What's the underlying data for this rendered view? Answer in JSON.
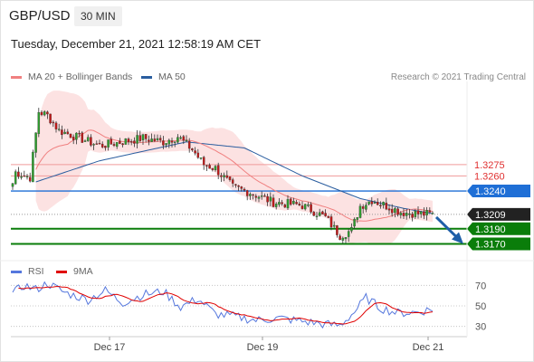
{
  "header": {
    "pair": "GBP/USD",
    "timeframe": "30 MIN",
    "datetime": "Tuesday, December 21, 2021 12:58:19 AM CET"
  },
  "legend": {
    "ma20": "MA 20 + Bollinger Bands",
    "ma50": "MA 50",
    "ma20_color": "#f08080",
    "ma50_color": "#2a5d9f",
    "credit": "Research © 2021 Trading Central"
  },
  "rsi_legend": {
    "rsi": "RSI",
    "ma9": "9MA",
    "rsi_color": "#5577dd",
    "ma9_color": "#e00000"
  },
  "chart_data": [
    {
      "type": "candlestick",
      "title": "GBP/USD 30 MIN",
      "x_ticks": [
        "Dec 17",
        "Dec 19",
        "Dec 21"
      ],
      "bars": 146,
      "ylim": [
        1.3155,
        1.3385
      ],
      "levels": [
        {
          "value": "1.3275",
          "role": "resistance",
          "color": "#e05050"
        },
        {
          "value": "1.3260",
          "role": "resistance",
          "color": "#e05050"
        },
        {
          "value": "1.3240",
          "role": "resistance",
          "color": "#1f6fd6"
        },
        {
          "value": "1.3209",
          "role": "last price",
          "color": "#222222"
        },
        {
          "value": "1.3190",
          "role": "support",
          "color": "#0a7d0a"
        },
        {
          "value": "1.3170",
          "role": "support",
          "color": "#0a7d0a"
        }
      ],
      "close_keys": [
        [
          0,
          1.325
        ],
        [
          1,
          1.3265
        ],
        [
          6,
          1.3258
        ],
        [
          9,
          1.3345
        ],
        [
          12,
          1.334
        ],
        [
          16,
          1.332
        ],
        [
          30,
          1.33
        ],
        [
          45,
          1.331
        ],
        [
          52,
          1.3305
        ],
        [
          57,
          1.3312
        ],
        [
          62,
          1.3295
        ],
        [
          66,
          1.3275
        ],
        [
          70,
          1.327
        ],
        [
          76,
          1.3245
        ],
        [
          82,
          1.3238
        ],
        [
          90,
          1.3225
        ],
        [
          100,
          1.3221
        ],
        [
          108,
          1.3205
        ],
        [
          113,
          1.3181
        ],
        [
          117,
          1.3188
        ],
        [
          120,
          1.322
        ],
        [
          124,
          1.3228
        ],
        [
          128,
          1.3222
        ],
        [
          134,
          1.3212
        ],
        [
          140,
          1.321
        ],
        [
          145,
          1.3209
        ]
      ],
      "ma50_keys": [
        [
          8,
          1.3252
        ],
        [
          30,
          1.328
        ],
        [
          60,
          1.3305
        ],
        [
          80,
          1.3297
        ],
        [
          100,
          1.326
        ],
        [
          120,
          1.323
        ],
        [
          135,
          1.3217
        ],
        [
          145,
          1.321
        ]
      ],
      "forecast": {
        "from": 1.3209,
        "to": 1.317
      }
    },
    {
      "type": "line",
      "title": "RSI",
      "series": [
        {
          "name": "RSI"
        },
        {
          "name": "9MA"
        }
      ],
      "yticks": [
        "70",
        "50",
        "30"
      ],
      "ylim": [
        20,
        80
      ],
      "rsi_keys": [
        [
          0,
          62
        ],
        [
          4,
          70
        ],
        [
          8,
          66
        ],
        [
          12,
          72
        ],
        [
          18,
          63
        ],
        [
          26,
          56
        ],
        [
          32,
          65
        ],
        [
          38,
          53
        ],
        [
          45,
          61
        ],
        [
          52,
          64
        ],
        [
          58,
          49
        ],
        [
          64,
          57
        ],
        [
          70,
          42
        ],
        [
          76,
          40
        ],
        [
          84,
          36
        ],
        [
          92,
          38
        ],
        [
          100,
          35
        ],
        [
          108,
          32
        ],
        [
          113,
          31
        ],
        [
          118,
          44
        ],
        [
          122,
          58
        ],
        [
          127,
          48
        ],
        [
          133,
          43
        ],
        [
          140,
          44
        ],
        [
          145,
          47
        ]
      ]
    }
  ]
}
